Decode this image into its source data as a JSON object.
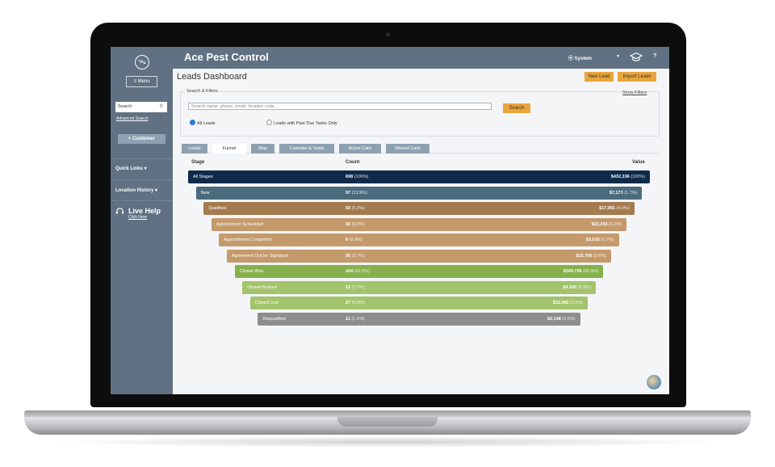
{
  "app": {
    "brand": "Ace Pest Control",
    "system_label": "⦿ System",
    "help_label": "?",
    "page_title": "Leads Dashboard"
  },
  "sidebar": {
    "menu_label": "≡ Menu",
    "search_label": "Search",
    "advanced_search": "Advanced Search",
    "customer_button": "+ Customer",
    "quick_links": "Quick Links  ▾",
    "location_history": "Location History ▾",
    "live_help": "Live Help",
    "click_here": "Click Here"
  },
  "header_buttons": {
    "new_lead": "New Lead",
    "import_leads": "Import Leads"
  },
  "filters": {
    "section_label": "Search & Filters",
    "show_filters": "Show Filters",
    "search_placeholder": "Search name, phone, email, location code...",
    "search_button": "Search",
    "radio_all": "All Leads",
    "radio_past_due": "Leads with Past Due Tasks Only",
    "selected_radio": "All Leads"
  },
  "tabs": [
    {
      "label": "Leads",
      "active": false
    },
    {
      "label": "Funnel",
      "active": true
    },
    {
      "label": "Map",
      "active": false
    },
    {
      "label": "Calendar & Tasks",
      "active": false
    },
    {
      "label": "Active Calls",
      "active": false
    },
    {
      "label": "Missed Calls",
      "active": false
    }
  ],
  "funnel": {
    "headers": {
      "stage": "Stage",
      "count": "Count",
      "value": "Value"
    },
    "rows": [
      {
        "stage": "All Stages",
        "count": "698",
        "count_pct": "(100%)",
        "value": "$432,336",
        "value_pct": "(100%)",
        "color": "#0f2a4a"
      },
      {
        "stage": "New",
        "count": "97",
        "count_pct": "(13.9%)",
        "value": "$7,173",
        "value_pct": "(1.7%)",
        "color": "#4a6a7e"
      },
      {
        "stage": "Qualified",
        "count": "43",
        "count_pct": "(6.2%)",
        "value": "$17,091",
        "value_pct": "(4.0%)",
        "color": "#a47a4f"
      },
      {
        "stage": "Appointment Scheduled",
        "count": "42",
        "count_pct": "(6.0%)",
        "value": "$22,293",
        "value_pct": "(5.2%)",
        "color": "#c49a6c"
      },
      {
        "stage": "Appointment Completed",
        "count": "6",
        "count_pct": "(0.9%)",
        "value": "$3,015",
        "value_pct": "(0.7%)",
        "color": "#c49a6c"
      },
      {
        "stage": "Agreement Out for Signature",
        "count": "26",
        "count_pct": "(3.7%)",
        "value": "$15,706",
        "value_pct": "(3.6%)",
        "color": "#c49a6c"
      },
      {
        "stage": "Closed Won",
        "count": "434",
        "count_pct": "(62.2%)",
        "value": "$349,728",
        "value_pct": "(80.9%)",
        "color": "#86b04c"
      },
      {
        "stage": "Closed Nurture",
        "count": "12",
        "count_pct": "(1.7%)",
        "value": "$4,100",
        "value_pct": "(0.9%)",
        "color": "#a3c46c"
      },
      {
        "stage": "Closed Lost",
        "count": "27",
        "count_pct": "(3.9%)",
        "value": "$11,082",
        "value_pct": "(2.6%)",
        "color": "#a3c46c"
      },
      {
        "stage": "Disqualified",
        "count": "11",
        "count_pct": "(1.6%)",
        "value": "$2,148",
        "value_pct": "(0.5%)",
        "color": "#8d8d8d"
      }
    ]
  }
}
